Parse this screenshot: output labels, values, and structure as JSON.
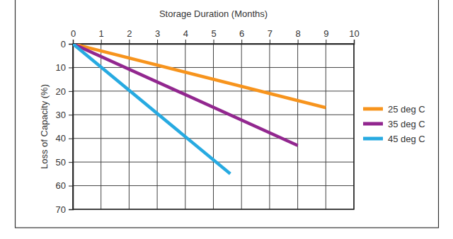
{
  "chart_data": {
    "type": "line",
    "x_label": "Storage Duration (Months)",
    "y_label": "Loss of Capacity (%)",
    "xlim": [
      0,
      10
    ],
    "xticks": [
      0,
      1,
      2,
      3,
      4,
      5,
      6,
      7,
      8,
      9,
      10
    ],
    "ylim": [
      0,
      70
    ],
    "yticks": [
      0,
      10,
      20,
      30,
      40,
      50,
      60,
      70
    ],
    "grid": true,
    "legend": "right",
    "series": [
      {
        "name": "25 deg C",
        "color": "#f7941d",
        "x": [
          0,
          9
        ],
        "values": [
          0,
          27
        ]
      },
      {
        "name": "35 deg C",
        "color": "#92278f",
        "x": [
          0,
          8
        ],
        "values": [
          0,
          43
        ]
      },
      {
        "name": "45 deg C",
        "color": "#27aae1",
        "x": [
          0,
          5.6
        ],
        "values": [
          0,
          55
        ]
      }
    ]
  }
}
